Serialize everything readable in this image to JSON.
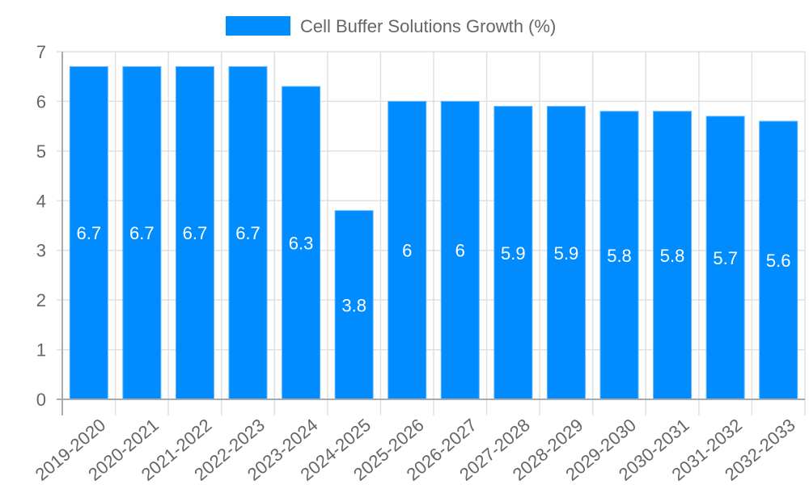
{
  "chart_data": {
    "type": "bar",
    "title": "",
    "xlabel": "",
    "ylabel": "",
    "categories": [
      "2019-2020",
      "2020-2021",
      "2021-2022",
      "2022-2023",
      "2023-2024",
      "2024-2025",
      "2025-2026",
      "2026-2027",
      "2027-2028",
      "2028-2029",
      "2029-2030",
      "2030-2031",
      "2031-2032",
      "2032-2033"
    ],
    "series": [
      {
        "name": "Cell Buffer Solutions Growth (%)",
        "color": "#008cff",
        "values": [
          6.7,
          6.7,
          6.7,
          6.7,
          6.3,
          3.8,
          6,
          6,
          5.9,
          5.9,
          5.8,
          5.8,
          5.7,
          5.6
        ]
      }
    ],
    "ylim": [
      0,
      7
    ],
    "yticks": [
      0,
      1,
      2,
      3,
      4,
      5,
      6,
      7
    ],
    "grid": true,
    "legend_position": "top",
    "data_labels": true
  },
  "legend": {
    "label": "Cell Buffer Solutions Growth (%)",
    "color": "#008cff"
  }
}
